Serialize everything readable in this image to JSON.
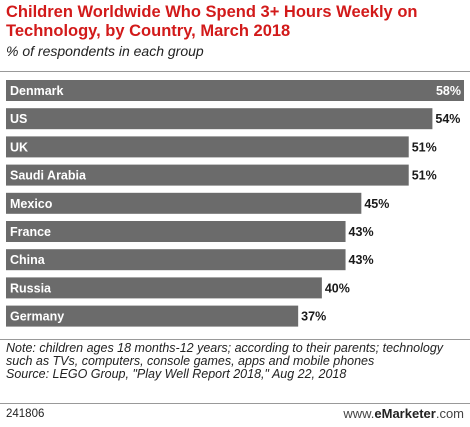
{
  "header": {
    "title": "Children Worldwide Who Spend 3+ Hours Weekly on Technology, by Country, March 2018",
    "subtitle": "% of respondents in each group"
  },
  "chart_data": {
    "type": "bar",
    "orientation": "horizontal",
    "categories": [
      "Denmark",
      "US",
      "UK",
      "Saudi Arabia",
      "Mexico",
      "France",
      "China",
      "Russia",
      "Germany"
    ],
    "values": [
      58,
      54,
      51,
      51,
      45,
      43,
      43,
      40,
      37
    ],
    "value_labels": [
      "58%",
      "54%",
      "51%",
      "51%",
      "45%",
      "43%",
      "43%",
      "40%",
      "37%"
    ],
    "unit": "%",
    "xlim": [
      0,
      58
    ],
    "bar_color": "#6b6b6b",
    "grid": false,
    "legend": "none"
  },
  "footer": {
    "note": "Note: children ages 18 months-12 years; according to their parents; technology such as TVs, computers, console games, apps and mobile phones",
    "source": "Source: LEGO Group, \"Play Well Report 2018,\" Aug 22, 2018",
    "id": "241806",
    "brand_prefix": "www.",
    "brand_name": "eMarketer",
    "brand_suffix": ".com"
  }
}
